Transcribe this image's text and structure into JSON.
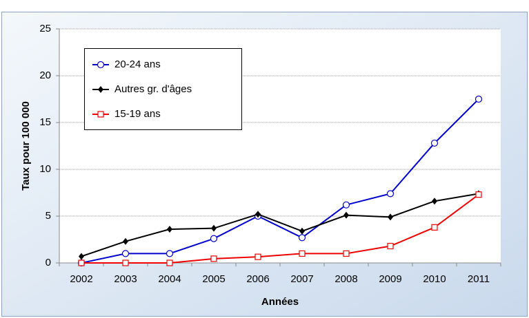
{
  "chart_data": {
    "type": "line",
    "x_label": "Années",
    "y_label": "Taux pour 100 000",
    "categories": [
      "2002",
      "2003",
      "2004",
      "2005",
      "2006",
      "2007",
      "2008",
      "2009",
      "2010",
      "2011"
    ],
    "series": [
      {
        "name": "20-24 ans",
        "color": "#0000cc",
        "marker": "circle",
        "values": [
          0,
          1,
          1,
          2.6,
          5,
          2.7,
          6.2,
          7.4,
          12.8,
          17.5
        ]
      },
      {
        "name": "Autres gr. d'âges",
        "color": "#000000",
        "marker": "diamond",
        "values": [
          0.7,
          2.3,
          3.6,
          3.7,
          5.2,
          3.4,
          5.1,
          4.9,
          6.6,
          7.4
        ]
      },
      {
        "name": "15-19 ans",
        "color": "#ee0000",
        "marker": "square",
        "values": [
          0,
          0,
          0,
          0.45,
          0.65,
          1.0,
          1.0,
          1.8,
          3.8,
          7.3
        ]
      }
    ],
    "ylim": [
      0,
      25
    ],
    "yticks": [
      0,
      5,
      10,
      15,
      20,
      25
    ],
    "grid": true,
    "legend": "upper left"
  }
}
